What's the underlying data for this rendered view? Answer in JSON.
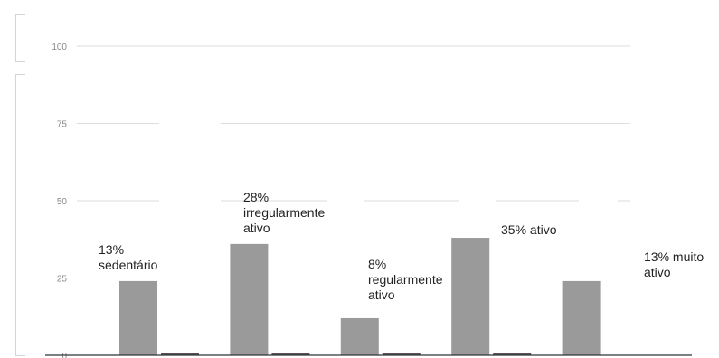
{
  "chart_data": {
    "type": "bar",
    "title": "",
    "xlabel": "",
    "ylabel": "",
    "ylim": [
      0,
      100
    ],
    "yticks": [
      "0",
      "25",
      "50",
      "75",
      "100"
    ],
    "grid": true,
    "categories": [
      "sedentário",
      "irregularmente ativo",
      "regularmente ativo",
      "ativo",
      "muito ativo"
    ],
    "series": [
      {
        "values": [
          24,
          36,
          12,
          38,
          24
        ]
      },
      {
        "values": [
          0.6,
          0.6,
          0.6,
          0.6,
          0
        ]
      }
    ],
    "annotations": [
      "13%\nsedentário",
      "28%\nirregularmente\nativo",
      "8%\nregularmente\nativo",
      "35% ativo",
      "13% muito\nativo"
    ],
    "colors": {
      "bar": "#9a9a9a",
      "bar_small": "#555555",
      "grid": "#dedede",
      "axis": "#333333"
    }
  }
}
